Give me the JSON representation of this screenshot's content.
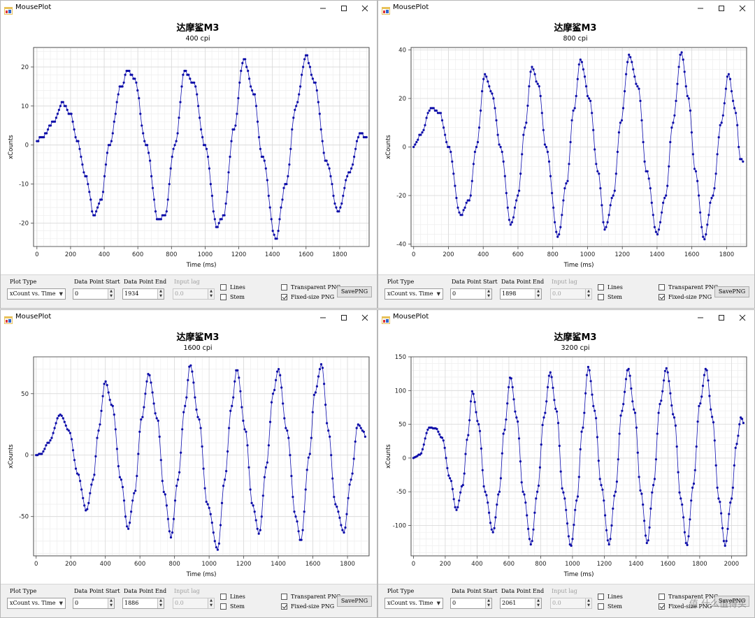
{
  "app_title": "MousePlot",
  "watermark": "值 什么值得买",
  "controls": {
    "plot_type_label": "Plot Type",
    "data_point_start_label": "Data Point Start",
    "data_point_end_label": "Data Point End",
    "input_lag_label": "Input lag",
    "lines_label": "Lines",
    "stem_label": "Stem",
    "transparent_png_label": "Transparent PNG",
    "fixed_size_png_label": "Fixed-size PNG",
    "save_png_label": "SavePNG"
  },
  "windows": [
    {
      "plot_type": "xCount vs. Time",
      "data_point_start": "0",
      "data_point_end": "1934",
      "input_lag": "0.0",
      "lines_checked": false,
      "stem_checked": false,
      "transparent_checked": false,
      "fixed_size_checked": true,
      "chart": {
        "title": "达摩鲨M3",
        "subtitle": "400 cpi",
        "xlabel": "Time (ms)",
        "ylabel": "xCounts",
        "xlim": [
          -20,
          1975
        ],
        "ylim": [
          -26,
          25
        ],
        "xticks": [
          0,
          200,
          400,
          600,
          800,
          1000,
          1200,
          1400,
          1600,
          1800
        ],
        "yticks": [
          -20,
          -10,
          0,
          10,
          20
        ],
        "dt": 8.2,
        "keypoints": [
          [
            0,
            1
          ],
          [
            30,
            2
          ],
          [
            100,
            6
          ],
          [
            150,
            11
          ],
          [
            200,
            8
          ],
          [
            240,
            1
          ],
          [
            290,
            -8
          ],
          [
            340,
            -18
          ],
          [
            380,
            -14
          ],
          [
            430,
            0
          ],
          [
            500,
            15
          ],
          [
            540,
            19
          ],
          [
            580,
            17
          ],
          [
            650,
            0
          ],
          [
            720,
            -19
          ],
          [
            760,
            -18
          ],
          [
            820,
            0
          ],
          [
            880,
            19
          ],
          [
            930,
            16
          ],
          [
            1000,
            0
          ],
          [
            1070,
            -21
          ],
          [
            1110,
            -18
          ],
          [
            1170,
            4
          ],
          [
            1230,
            22
          ],
          [
            1290,
            13
          ],
          [
            1340,
            -3
          ],
          [
            1420,
            -24
          ],
          [
            1480,
            -10
          ],
          [
            1540,
            10
          ],
          [
            1600,
            23
          ],
          [
            1650,
            16
          ],
          [
            1720,
            -4
          ],
          [
            1790,
            -17
          ],
          [
            1860,
            -7
          ],
          [
            1920,
            3
          ],
          [
            1960,
            2
          ]
        ]
      }
    },
    {
      "plot_type": "xCount vs. Time",
      "data_point_start": "0",
      "data_point_end": "1898",
      "input_lag": "0.0",
      "lines_checked": false,
      "stem_checked": false,
      "transparent_checked": false,
      "fixed_size_checked": true,
      "chart": {
        "title": "达摩鲨M3",
        "subtitle": "800 cpi",
        "xlabel": "Time (ms)",
        "ylabel": "xCounts",
        "xlim": [
          -15,
          1915
        ],
        "ylim": [
          -41,
          41
        ],
        "xticks": [
          0,
          200,
          400,
          600,
          800,
          1000,
          1200,
          1400,
          1600,
          1800
        ],
        "yticks": [
          -40,
          -20,
          0,
          20,
          40
        ],
        "dt": 8.2,
        "keypoints": [
          [
            0,
            0
          ],
          [
            40,
            5
          ],
          [
            100,
            16
          ],
          [
            150,
            14
          ],
          [
            200,
            0
          ],
          [
            270,
            -28
          ],
          [
            320,
            -22
          ],
          [
            360,
            0
          ],
          [
            410,
            30
          ],
          [
            450,
            22
          ],
          [
            500,
            0
          ],
          [
            560,
            -32
          ],
          [
            600,
            -20
          ],
          [
            640,
            8
          ],
          [
            680,
            33
          ],
          [
            720,
            25
          ],
          [
            760,
            0
          ],
          [
            830,
            -37
          ],
          [
            880,
            -15
          ],
          [
            920,
            15
          ],
          [
            960,
            36
          ],
          [
            1010,
            20
          ],
          [
            1060,
            -10
          ],
          [
            1100,
            -34
          ],
          [
            1150,
            -20
          ],
          [
            1190,
            10
          ],
          [
            1240,
            38
          ],
          [
            1290,
            25
          ],
          [
            1340,
            -10
          ],
          [
            1400,
            -36
          ],
          [
            1450,
            -20
          ],
          [
            1490,
            10
          ],
          [
            1540,
            39
          ],
          [
            1580,
            20
          ],
          [
            1620,
            -10
          ],
          [
            1670,
            -38
          ],
          [
            1720,
            -20
          ],
          [
            1770,
            10
          ],
          [
            1810,
            30
          ],
          [
            1850,
            15
          ],
          [
            1880,
            -5
          ],
          [
            1900,
            -6
          ]
        ]
      }
    },
    {
      "plot_type": "xCount vs. Time",
      "data_point_start": "0",
      "data_point_end": "1886",
      "input_lag": "0.0",
      "lines_checked": false,
      "stem_checked": false,
      "transparent_checked": false,
      "fixed_size_checked": true,
      "chart": {
        "title": "达摩鲨M3",
        "subtitle": "1600 cpi",
        "xlabel": "Time (ms)",
        "ylabel": "xCounts",
        "xlim": [
          -15,
          1925
        ],
        "ylim": [
          -82,
          80
        ],
        "xticks": [
          0,
          200,
          400,
          600,
          800,
          1000,
          1200,
          1400,
          1600,
          1800
        ],
        "yticks": [
          -50,
          0,
          50
        ],
        "dt": 8.2,
        "keypoints": [
          [
            0,
            0
          ],
          [
            30,
            1
          ],
          [
            70,
            10
          ],
          [
            140,
            33
          ],
          [
            190,
            20
          ],
          [
            240,
            -15
          ],
          [
            290,
            -45
          ],
          [
            330,
            -20
          ],
          [
            360,
            20
          ],
          [
            400,
            60
          ],
          [
            440,
            40
          ],
          [
            490,
            -20
          ],
          [
            530,
            -60
          ],
          [
            570,
            -30
          ],
          [
            610,
            30
          ],
          [
            650,
            66
          ],
          [
            700,
            30
          ],
          [
            740,
            -30
          ],
          [
            780,
            -67
          ],
          [
            820,
            -20
          ],
          [
            860,
            40
          ],
          [
            890,
            74
          ],
          [
            940,
            30
          ],
          [
            990,
            -40
          ],
          [
            1050,
            -77
          ],
          [
            1090,
            -20
          ],
          [
            1130,
            40
          ],
          [
            1160,
            70
          ],
          [
            1210,
            20
          ],
          [
            1250,
            -40
          ],
          [
            1290,
            -64
          ],
          [
            1330,
            -10
          ],
          [
            1370,
            50
          ],
          [
            1400,
            70
          ],
          [
            1450,
            20
          ],
          [
            1500,
            -50
          ],
          [
            1530,
            -70
          ],
          [
            1580,
            0
          ],
          [
            1610,
            50
          ],
          [
            1650,
            74
          ],
          [
            1690,
            20
          ],
          [
            1730,
            -40
          ],
          [
            1780,
            -63
          ],
          [
            1820,
            -20
          ],
          [
            1860,
            25
          ],
          [
            1890,
            20
          ],
          [
            1910,
            12
          ]
        ]
      }
    },
    {
      "plot_type": "xCount vs. Time",
      "data_point_start": "0",
      "data_point_end": "2061",
      "input_lag": "0.0",
      "lines_checked": false,
      "stem_checked": false,
      "transparent_checked": false,
      "fixed_size_checked": true,
      "chart": {
        "title": "达摩鲨M3",
        "subtitle": "3200 cpi",
        "xlabel": "Time (ms)",
        "ylabel": "xCounts",
        "xlim": [
          -15,
          2095
        ],
        "ylim": [
          -145,
          150
        ],
        "xticks": [
          0,
          200,
          400,
          600,
          800,
          1000,
          1200,
          1400,
          1600,
          1800,
          2000
        ],
        "yticks": [
          -100,
          -50,
          0,
          50,
          100,
          150
        ],
        "dt": 8.2,
        "keypoints": [
          [
            0,
            0
          ],
          [
            40,
            5
          ],
          [
            100,
            45
          ],
          [
            140,
            44
          ],
          [
            180,
            30
          ],
          [
            230,
            -30
          ],
          [
            270,
            -77
          ],
          [
            310,
            -40
          ],
          [
            340,
            30
          ],
          [
            370,
            99
          ],
          [
            410,
            50
          ],
          [
            450,
            -50
          ],
          [
            500,
            -110
          ],
          [
            540,
            -50
          ],
          [
            570,
            40
          ],
          [
            610,
            120
          ],
          [
            650,
            60
          ],
          [
            690,
            -50
          ],
          [
            740,
            -128
          ],
          [
            780,
            -50
          ],
          [
            820,
            60
          ],
          [
            860,
            127
          ],
          [
            900,
            70
          ],
          [
            940,
            -50
          ],
          [
            990,
            -131
          ],
          [
            1030,
            -60
          ],
          [
            1060,
            40
          ],
          [
            1100,
            135
          ],
          [
            1140,
            70
          ],
          [
            1180,
            -40
          ],
          [
            1230,
            -128
          ],
          [
            1270,
            -50
          ],
          [
            1310,
            70
          ],
          [
            1350,
            133
          ],
          [
            1390,
            70
          ],
          [
            1430,
            -50
          ],
          [
            1470,
            -127
          ],
          [
            1510,
            -40
          ],
          [
            1550,
            80
          ],
          [
            1590,
            133
          ],
          [
            1640,
            60
          ],
          [
            1680,
            -60
          ],
          [
            1720,
            -130
          ],
          [
            1760,
            -40
          ],
          [
            1800,
            80
          ],
          [
            1840,
            133
          ],
          [
            1880,
            60
          ],
          [
            1920,
            -60
          ],
          [
            1960,
            -130
          ],
          [
            2000,
            -60
          ],
          [
            2030,
            20
          ],
          [
            2060,
            60
          ],
          [
            2080,
            50
          ]
        ]
      }
    }
  ]
}
